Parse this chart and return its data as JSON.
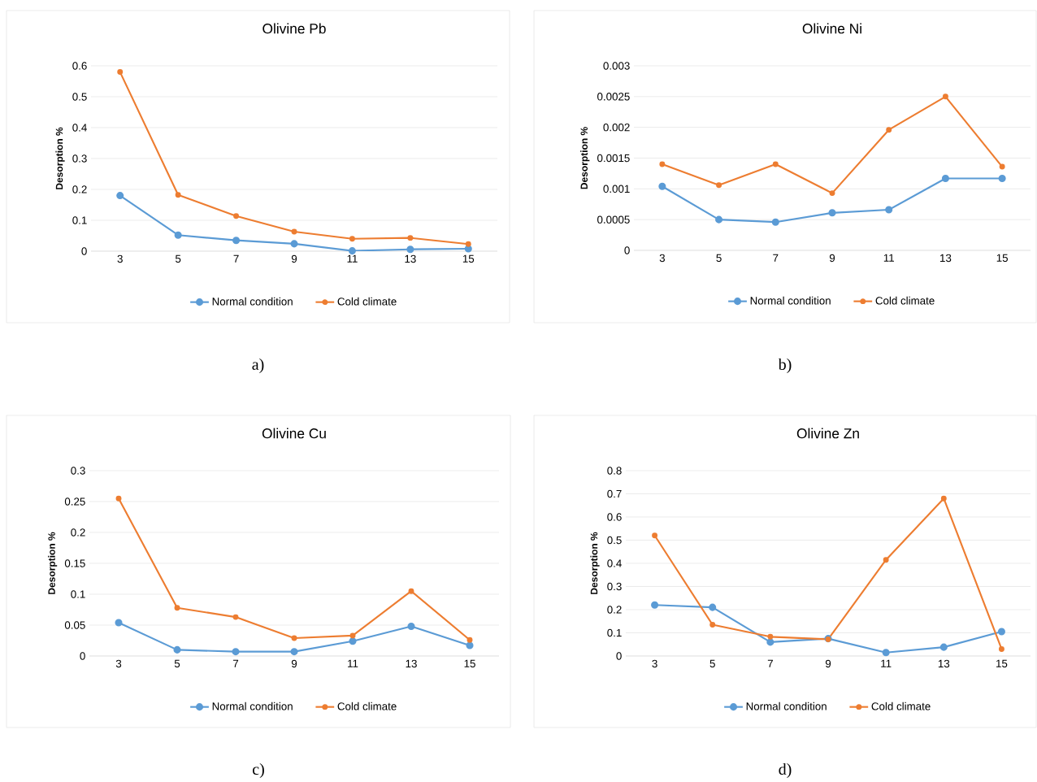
{
  "chart_data": [
    {
      "type": "line",
      "title": "Olivine Pb",
      "ylabel": "Desorption %",
      "categories": [
        "3",
        "5",
        "7",
        "9",
        "11",
        "13",
        "15"
      ],
      "ylim": [
        0,
        0.6
      ],
      "yticks": [
        0,
        0.1,
        0.2,
        0.3,
        0.4,
        0.5,
        0.6
      ],
      "grid": "y",
      "legend": "bottom",
      "marker": "circle",
      "annotations": [
        "a)"
      ],
      "series": [
        {
          "name": "Normal condition",
          "color": "#5b9bd5",
          "values": [
            0.18,
            0.052,
            0.035,
            0.024,
            0.001,
            0.006,
            0.008
          ]
        },
        {
          "name": "Cold climate",
          "color": "#ed7d31",
          "values": [
            0.58,
            0.182,
            0.114,
            0.063,
            0.04,
            0.043,
            0.023
          ]
        }
      ]
    },
    {
      "type": "line",
      "title": "Olivine Ni",
      "ylabel": "Desorption %",
      "categories": [
        "3",
        "5",
        "7",
        "9",
        "11",
        "13",
        "15"
      ],
      "ylim": [
        0,
        0.003
      ],
      "yticks": [
        0,
        0.0005,
        0.001,
        0.0015,
        0.002,
        0.0025,
        0.003
      ],
      "grid": "y",
      "legend": "bottom",
      "marker": "circle",
      "annotations": [
        "b)"
      ],
      "series": [
        {
          "name": "Normal condition",
          "color": "#5b9bd5",
          "values": [
            0.00104,
            0.0005,
            0.00046,
            0.00061,
            0.00066,
            0.00117,
            0.00117
          ]
        },
        {
          "name": "Cold climate",
          "color": "#ed7d31",
          "values": [
            0.0014,
            0.00106,
            0.0014,
            0.00093,
            0.00196,
            0.0025,
            0.00136
          ]
        }
      ]
    },
    {
      "type": "line",
      "title": "Olivine Cu",
      "ylabel": "Desorption %",
      "categories": [
        "3",
        "5",
        "7",
        "9",
        "11",
        "13",
        "15"
      ],
      "ylim": [
        0,
        0.3
      ],
      "yticks": [
        0,
        0.05,
        0.1,
        0.15,
        0.2,
        0.25,
        0.3
      ],
      "grid": "y",
      "legend": "bottom",
      "marker": "circle",
      "annotations": [
        "c)"
      ],
      "series": [
        {
          "name": "Normal condition",
          "color": "#5b9bd5",
          "values": [
            0.054,
            0.01,
            0.007,
            0.007,
            0.024,
            0.048,
            0.017
          ]
        },
        {
          "name": "Cold climate",
          "color": "#ed7d31",
          "values": [
            0.255,
            0.078,
            0.063,
            0.029,
            0.033,
            0.105,
            0.026
          ]
        }
      ]
    },
    {
      "type": "line",
      "title": "Olivine Zn",
      "ylabel": "Desorption %",
      "categories": [
        "3",
        "5",
        "7",
        "9",
        "11",
        "13",
        "15"
      ],
      "ylim": [
        0,
        0.8
      ],
      "yticks": [
        0,
        0.1,
        0.2,
        0.3,
        0.4,
        0.5,
        0.6,
        0.7,
        0.8
      ],
      "grid": "y",
      "legend": "bottom",
      "marker": "circle",
      "annotations": [
        "d)"
      ],
      "series": [
        {
          "name": "Normal condition",
          "color": "#5b9bd5",
          "values": [
            0.22,
            0.21,
            0.06,
            0.075,
            0.015,
            0.038,
            0.105
          ]
        },
        {
          "name": "Cold climate",
          "color": "#ed7d31",
          "values": [
            0.52,
            0.135,
            0.083,
            0.072,
            0.415,
            0.68,
            0.03
          ]
        }
      ]
    }
  ]
}
